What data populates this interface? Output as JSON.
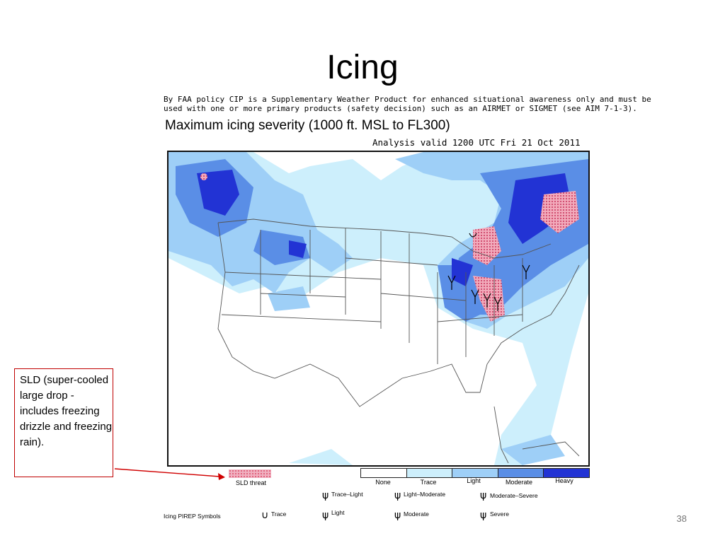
{
  "slide": {
    "title": "Icing",
    "page_number": "38"
  },
  "disclaimer": [
    "By FAA policy CIP is a Supplementary Weather Product for enhanced situational awareness only and must be",
    "used with one or more primary products (safety decision) such as an AIRMET or SIGMET (see AIM 7-1-3)."
  ],
  "map": {
    "heading": "Maximum icing severity (1000 ft. MSL to FL300)",
    "valid": "Analysis valid 1200 UTC Fri 21 Oct 2011"
  },
  "callout": {
    "text": "SLD (super-cooled large drop - includes freezing drizzle and freezing rain)."
  },
  "legend": {
    "sld_label": "SLD threat",
    "scale": [
      {
        "label": "None",
        "color": "#ffffff"
      },
      {
        "label": "Trace",
        "color": "#cdeffc"
      },
      {
        "label": "Light",
        "color": "#9ecff7"
      },
      {
        "label": "Moderate",
        "color": "#5a8ee6"
      },
      {
        "label": "Heavy",
        "color": "#2233d4"
      }
    ],
    "pirep_title": "Icing PIREP Symbols",
    "pirep_row1": [
      "Trace–Light",
      "Light–Moderate",
      "Moderate–Severe"
    ],
    "pirep_row2": [
      "Trace",
      "Light",
      "Moderate",
      "Severe"
    ]
  }
}
